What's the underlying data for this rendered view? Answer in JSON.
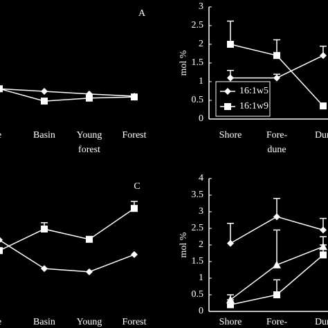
{
  "chart_data": [
    {
      "type": "line",
      "panel_label": "A",
      "categories": [
        [
          "e"
        ],
        [
          "Basin"
        ],
        [
          "Young",
          "forest"
        ],
        [
          "Forest"
        ]
      ],
      "ylim": [
        0,
        3
      ],
      "series": [
        {
          "marker": "diamond",
          "color": "#ffffff",
          "values": [
            0.81,
            0.74,
            0.67,
            0.61
          ]
        },
        {
          "marker": "square",
          "color": "#ffffff",
          "values": [
            0.81,
            0.48,
            0.56,
            0.59
          ]
        }
      ]
    },
    {
      "type": "line",
      "y_label": "mol %",
      "categories": [
        [
          "Shore"
        ],
        [
          "Fore-",
          "dune"
        ],
        [
          "Dun"
        ]
      ],
      "ylim": [
        0,
        3
      ],
      "yticks": [
        0,
        0.5,
        1,
        1.5,
        2,
        2.5,
        3
      ],
      "legend": "lower left",
      "series": [
        {
          "name": "16:1w5",
          "marker": "diamond",
          "color": "#ffffff",
          "values": [
            1.1,
            1.1,
            1.7
          ],
          "errors": [
            0.2,
            0.1,
            0.25
          ]
        },
        {
          "name": "16:1w9",
          "marker": "square",
          "color": "#ffffff",
          "values": [
            2.0,
            1.7,
            0.35
          ],
          "errors": [
            0.62,
            0.42,
            null
          ]
        }
      ]
    },
    {
      "type": "line",
      "panel_label": "C",
      "categories": [
        [
          "e"
        ],
        [
          "Basin"
        ],
        [
          "Young",
          "forest"
        ],
        [
          "Forest"
        ]
      ],
      "ylim": [
        0,
        4
      ],
      "series": [
        {
          "marker": "diamond",
          "color": "#ffffff",
          "values": [
            2.15,
            1.29,
            1.19,
            1.71
          ]
        },
        {
          "marker": "square",
          "color": "#ffffff",
          "values": [
            1.83,
            2.48,
            2.17,
            3.1
          ],
          "errors": [
            null,
            0.19,
            null,
            0.21
          ]
        }
      ]
    },
    {
      "type": "line",
      "y_label": "mol %",
      "categories": [
        [
          "Shore"
        ],
        [
          "Fore-",
          "dune"
        ],
        [
          "Dun"
        ]
      ],
      "ylim": [
        0,
        4
      ],
      "yticks": [
        0,
        0.5,
        1,
        1.5,
        2,
        2.5,
        3,
        3.5,
        4
      ],
      "series": [
        {
          "marker": "diamond",
          "color": "#ffffff",
          "values": [
            2.05,
            2.85,
            2.45
          ],
          "errors": [
            0.6,
            0.55,
            0.35
          ]
        },
        {
          "marker": "triangle",
          "color": "#ffffff",
          "values": [
            0.35,
            1.4,
            1.95
          ],
          "errors": [
            0.15,
            1.05,
            0.3
          ]
        },
        {
          "marker": "square",
          "color": "#ffffff",
          "values": [
            0.2,
            0.5,
            1.7
          ],
          "errors": [
            0.15,
            0.45,
            0.3
          ]
        }
      ]
    }
  ]
}
